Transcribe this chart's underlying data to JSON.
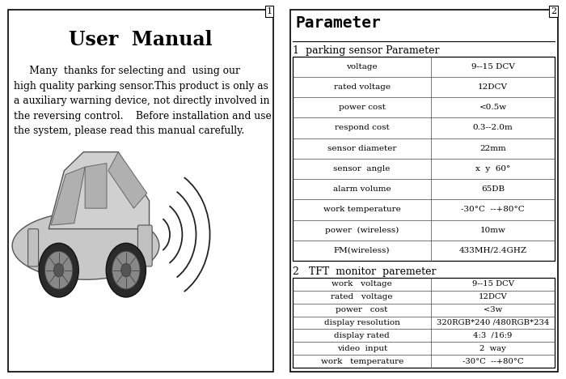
{
  "left_title": "User  Manual",
  "left_body_lines": [
    "     Many  thanks for selecting and  using our",
    "high quality parking sensor.This product is only as",
    "a auxiliary warning device, not directly involved in",
    "the reversing control.    Before installation and use",
    "the system, please read this manual carefully."
  ],
  "right_title": "Parameter",
  "section1_title": "1  parking sensor Parameter",
  "section1_rows": [
    [
      "voltage",
      "9--15 DCV"
    ],
    [
      "rated voltage",
      "12DCV"
    ],
    [
      "power cost",
      "<0.5w"
    ],
    [
      "respond cost",
      "0.3--2.0m"
    ],
    [
      "sensor diameter",
      "22mm"
    ],
    [
      "sensor  angle",
      "x  y  60°"
    ],
    [
      "alarm volume",
      "65DB"
    ],
    [
      "work temperature",
      "-30°C  --+80°C"
    ],
    [
      "power  (wireless)",
      "10mw"
    ],
    [
      "FM(wireless)",
      "433MH/2.4GHZ"
    ]
  ],
  "section2_title": "2   TFT  monitor  paremeter",
  "section2_rows": [
    [
      "work   voltage",
      "9--15 DCV"
    ],
    [
      "rated   voltage",
      "12DCV"
    ],
    [
      "power   cost",
      "<3w"
    ],
    [
      "display resolution",
      "320RGB*240 /480RGB*234"
    ],
    [
      "display rated",
      "4:3  /16:9"
    ],
    [
      "video  input",
      "2  way"
    ],
    [
      "work   temperature",
      "-30°C  --+80°C"
    ]
  ],
  "page1_num": "1",
  "page2_num": "2",
  "bg_color": "#ffffff",
  "text_color": "#000000",
  "border_color": "#000000",
  "divider_color": "#888888",
  "table_line_color": "#444444"
}
